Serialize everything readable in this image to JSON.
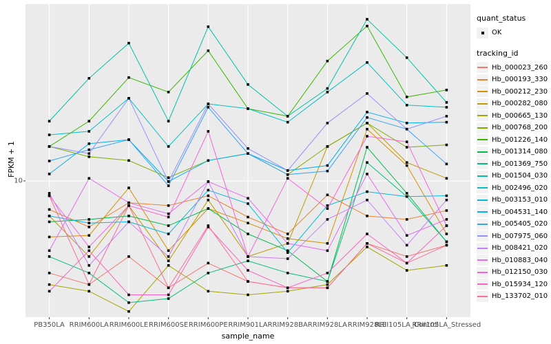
{
  "chart_data": {
    "type": "line",
    "title": "",
    "xlabel": "sample_name",
    "ylabel": "FPKM + 1",
    "y_scale": "log10",
    "y_ticks": [
      "10"
    ],
    "ylim_log10": [
      0.109,
      2.156
    ],
    "grid": "on",
    "panel_bg": "#EBEBEB",
    "grid_color": "#FFFFFF",
    "point_color": "#000000",
    "legend_position": "right",
    "categories": [
      "PB350LA",
      "RRIM600LA",
      "RRIM600LE",
      "RRIM600SE",
      "RRIM600PE",
      "RRIM901LA",
      "RRIM928BA",
      "RRIM928LA",
      "RRIM928LE",
      "RRII105LA_Control",
      "RRII105LA_Stressed"
    ],
    "legend_quant": {
      "title": "quant_status",
      "items": [
        {
          "label": "OK",
          "marker": "black-square-point"
        }
      ]
    },
    "legend_tracking": {
      "title": "tracking_id"
    },
    "series": [
      {
        "name": "Hb_000023_260",
        "color": "#F8766D",
        "values": [
          2.5,
          2.1,
          3.2,
          2.0,
          2.9,
          2.2,
          2.0,
          2.0,
          3.9,
          3.2,
          3.8
        ]
      },
      {
        "name": "Hb_000193_330",
        "color": "#EA8331",
        "values": [
          6.5,
          5.0,
          7.2,
          6.9,
          8.0,
          5.8,
          4.5,
          8.1,
          5.9,
          5.6,
          6.4
        ]
      },
      {
        "name": "Hb_000212_230",
        "color": "#D89000",
        "values": [
          4.3,
          4.4,
          9.0,
          3.5,
          6.6,
          5.3,
          4.2,
          3.9,
          21.8,
          12.6,
          4.5
        ]
      },
      {
        "name": "Hb_000282_080",
        "color": "#C09B00",
        "values": [
          5.9,
          3.2,
          6.9,
          3.0,
          7.5,
          3.2,
          3.9,
          16.8,
          23.9,
          13.2,
          10.4
        ]
      },
      {
        "name": "Hb_000665_130",
        "color": "#A3A500",
        "values": [
          2.1,
          1.9,
          1.4,
          2.8,
          1.9,
          1.8,
          1.9,
          2.1,
          3.7,
          2.6,
          2.8
        ]
      },
      {
        "name": "Hb_000768_200",
        "color": "#7CAE00",
        "values": [
          16.8,
          14.4,
          13.6,
          10.5,
          13.6,
          15.1,
          11.0,
          16.8,
          23.9,
          16.6,
          17.2
        ]
      },
      {
        "name": "Hb_001226_140",
        "color": "#39B600",
        "values": [
          16.8,
          24.6,
          47.4,
          38.1,
          71.0,
          29.7,
          26.5,
          60.8,
          103.0,
          35.4,
          39.3
        ]
      },
      {
        "name": "Hb_001314_080",
        "color": "#00BB4E",
        "values": [
          5.4,
          5.6,
          5.9,
          5.1,
          6.6,
          4.5,
          3.5,
          2.2,
          16.6,
          8.3,
          4.0
        ]
      },
      {
        "name": "Hb_001369_750",
        "color": "#00BF7D",
        "values": [
          3.2,
          2.5,
          1.6,
          1.7,
          2.5,
          3.0,
          2.5,
          2.2,
          13.2,
          7.9,
          4.0
        ]
      },
      {
        "name": "Hb_001504_030",
        "color": "#00C1A3",
        "values": [
          24.6,
          46.9,
          79.6,
          24.6,
          102.0,
          42.7,
          26.5,
          40.2,
          114.0,
          64.0,
          32.6
        ]
      },
      {
        "name": "Hb_002496_020",
        "color": "#00BFC4",
        "values": [
          20.0,
          21.1,
          34.7,
          16.8,
          31.9,
          29.7,
          24.2,
          38.1,
          59.5,
          31.3,
          30.3
        ]
      },
      {
        "name": "Hb_003153_010",
        "color": "#00BAE0",
        "values": [
          5.9,
          5.3,
          5.4,
          4.5,
          8.7,
          7.1,
          3.4,
          6.9,
          8.5,
          7.9,
          8.0
        ]
      },
      {
        "name": "Hb_004531_140",
        "color": "#00B0F6",
        "values": [
          11.1,
          17.5,
          18.6,
          9.9,
          13.6,
          15.1,
          11.7,
          12.6,
          28.2,
          23.9,
          24.2
        ]
      },
      {
        "name": "Hb_005405_020",
        "color": "#35A2FF",
        "values": [
          13.5,
          16.0,
          18.6,
          9.3,
          30.3,
          15.1,
          11.0,
          11.6,
          26.0,
          21.8,
          12.9
        ]
      },
      {
        "name": "Hb_007975_060",
        "color": "#9590FF",
        "values": [
          16.8,
          15.1,
          34.7,
          9.9,
          31.9,
          16.3,
          11.7,
          23.9,
          37.3,
          21.8,
          26.5
        ]
      },
      {
        "name": "Hb_008421_020",
        "color": "#C77CFF",
        "values": [
          8.3,
          2.8,
          5.4,
          3.2,
          9.9,
          3.2,
          3.1,
          5.6,
          7.5,
          3.8,
          7.5
        ]
      },
      {
        "name": "Hb_010883_040",
        "color": "#E76BF3",
        "values": [
          3.5,
          10.4,
          7.2,
          6.1,
          9.9,
          7.7,
          3.9,
          3.5,
          11.1,
          4.4,
          5.6
        ]
      },
      {
        "name": "Hb_012150_030",
        "color": "#FA62DB",
        "values": [
          8.0,
          3.7,
          6.9,
          5.8,
          21.1,
          3.2,
          10.4,
          6.6,
          19.6,
          18.0,
          5.1
        ]
      },
      {
        "name": "Hb_015934_120",
        "color": "#FF62BC",
        "values": [
          1.9,
          3.5,
          1.8,
          1.8,
          5.0,
          2.6,
          2.0,
          2.5,
          4.5,
          2.9,
          5.1
        ]
      },
      {
        "name": "Hb_133702_010",
        "color": "#FF6A98",
        "values": [
          8.0,
          2.1,
          6.9,
          2.0,
          5.1,
          2.2,
          2.0,
          2.0,
          3.9,
          2.9,
          3.8
        ]
      }
    ]
  }
}
